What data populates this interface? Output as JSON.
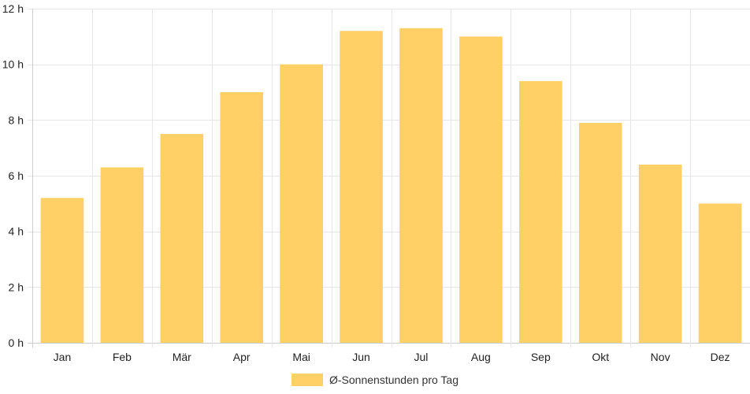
{
  "chart_data": {
    "type": "bar",
    "categories": [
      "Jan",
      "Feb",
      "Mär",
      "Apr",
      "Mai",
      "Jun",
      "Jul",
      "Aug",
      "Sep",
      "Okt",
      "Nov",
      "Dez"
    ],
    "series": [
      {
        "name": "Ø-Sonnenstunden pro Tag",
        "values": [
          5.2,
          6.3,
          7.5,
          9.0,
          10.0,
          11.2,
          11.3,
          11.0,
          9.4,
          7.9,
          6.4,
          5.0
        ],
        "color": "#ffd066"
      }
    ],
    "y_ticks": [
      "0 h",
      "2 h",
      "4 h",
      "6 h",
      "8 h",
      "10 h",
      "12 h"
    ],
    "ylim": [
      0,
      12
    ],
    "y_tick_step": 2,
    "grid": true,
    "legend": "bottom-center"
  }
}
